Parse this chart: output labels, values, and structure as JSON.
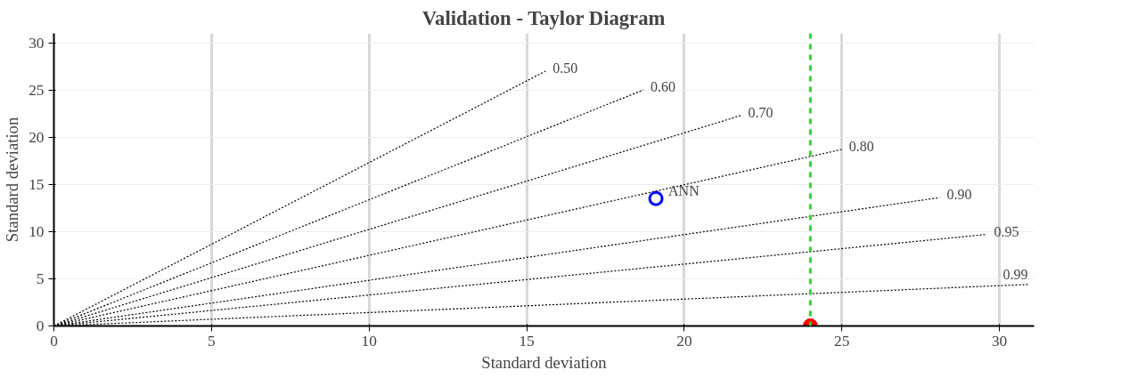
{
  "chart_data": {
    "type": "scatter",
    "title": "Validation - Taylor Diagram",
    "xlabel": "Standard deviation",
    "ylabel": "Standard deviation",
    "xlim": [
      0,
      31.1
    ],
    "ylim": [
      0,
      31
    ],
    "xticks": [
      0,
      5,
      10,
      15,
      20,
      25,
      30
    ],
    "yticks": [
      0,
      5,
      10,
      15,
      20,
      25,
      30
    ],
    "grid": true,
    "ref_lines": [
      {
        "axis": "x",
        "value": 24,
        "color": "#22dd22",
        "line_style": "dashed"
      }
    ],
    "series": [
      {
        "name": "0.50",
        "type": "line",
        "x": [
          0,
          15.6
        ],
        "values": [
          0,
          27.0
        ],
        "color": "#000000",
        "line_style": "dotted",
        "marker": "none"
      },
      {
        "name": "0.60",
        "type": "line",
        "x": [
          0,
          18.7
        ],
        "values": [
          0,
          25.0
        ],
        "color": "#000000",
        "line_style": "dotted",
        "marker": "none"
      },
      {
        "name": "0.70",
        "type": "line",
        "x": [
          0,
          21.8
        ],
        "values": [
          0,
          22.3
        ],
        "color": "#000000",
        "line_style": "dotted",
        "marker": "none"
      },
      {
        "name": "0.80",
        "type": "line",
        "x": [
          0,
          25.0
        ],
        "values": [
          0,
          18.7
        ],
        "color": "#000000",
        "line_style": "dotted",
        "marker": "none"
      },
      {
        "name": "0.90",
        "type": "line",
        "x": [
          0,
          28.1
        ],
        "values": [
          0,
          13.6
        ],
        "color": "#000000",
        "line_style": "dotted",
        "marker": "none"
      },
      {
        "name": "0.95",
        "type": "line",
        "x": [
          0,
          29.6
        ],
        "values": [
          0,
          9.7
        ],
        "color": "#000000",
        "line_style": "dotted",
        "marker": "none"
      },
      {
        "name": "0.99",
        "type": "line",
        "x": [
          0,
          30.9
        ],
        "values": [
          0,
          4.4
        ],
        "color": "#000000",
        "line_style": "dotted",
        "marker": "none"
      },
      {
        "name": "ANN",
        "x": [
          19.1
        ],
        "values": [
          13.5
        ],
        "color": "#0000ff",
        "marker": "circle"
      },
      {
        "x": [
          24.0
        ],
        "values": [
          0
        ],
        "color": "#ff0000",
        "marker": "circle"
      }
    ]
  }
}
